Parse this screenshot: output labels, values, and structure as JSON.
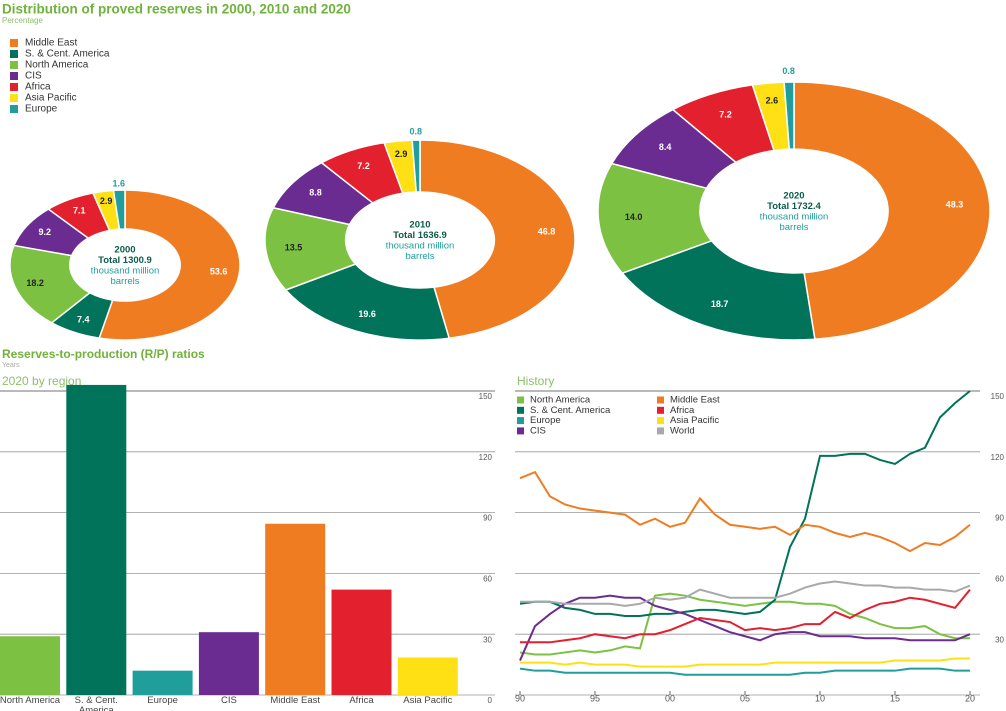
{
  "header": {
    "title": "Distribution of proved reserves in 2000, 2010 and 2020",
    "subtitle": "Percentage"
  },
  "section": {
    "title": "Reserves-to-production (R/P) ratios",
    "subtitle": "Years"
  },
  "chart_data": [
    {
      "type": "pie",
      "annotations": [
        "2000",
        "Total 1300.9",
        "thousand million",
        "barrels"
      ],
      "categories": [
        "Middle East",
        "S. & Cent. America",
        "North America",
        "CIS",
        "Africa",
        "Asia Pacific",
        "Europe"
      ],
      "colors": [
        "#f07c22",
        "#00735a",
        "#7dc143",
        "#6a2c91",
        "#e3202e",
        "#ffe014",
        "#1f9e9c"
      ],
      "values": [
        53.6,
        7.4,
        18.2,
        9.2,
        7.1,
        2.9,
        1.6
      ],
      "value_labels": [
        "53.6",
        "7.4",
        "18.2",
        "9.2",
        "7.1",
        "2.9",
        "1.6"
      ]
    },
    {
      "type": "pie",
      "annotations": [
        "2010",
        "Total 1636.9",
        "thousand million",
        "barrels"
      ],
      "categories": [
        "Middle East",
        "S. & Cent. America",
        "North America",
        "CIS",
        "Africa",
        "Asia Pacific",
        "Europe"
      ],
      "colors": [
        "#f07c22",
        "#00735a",
        "#7dc143",
        "#6a2c91",
        "#e3202e",
        "#ffe014",
        "#1f9e9c"
      ],
      "values": [
        46.8,
        19.6,
        13.5,
        8.8,
        7.2,
        2.9,
        0.8
      ],
      "value_labels": [
        "46.8",
        "19.6",
        "13.5",
        "8.8",
        "7.2",
        "2.9",
        "0.8"
      ]
    },
    {
      "type": "pie",
      "annotations": [
        "2020",
        "Total 1732.4",
        "thousand million",
        "barrels"
      ],
      "categories": [
        "Middle East",
        "S. & Cent. America",
        "North America",
        "CIS",
        "Africa",
        "Asia Pacific",
        "Europe"
      ],
      "colors": [
        "#f07c22",
        "#00735a",
        "#7dc143",
        "#6a2c91",
        "#e3202e",
        "#ffe014",
        "#1f9e9c"
      ],
      "values": [
        48.3,
        18.7,
        14.0,
        8.4,
        7.2,
        2.6,
        0.8
      ],
      "value_labels": [
        "48.3",
        "18.7",
        "14.0",
        "8.4",
        "7.2",
        "2.6",
        "0.8"
      ]
    },
    {
      "type": "bar",
      "title": "2020 by region",
      "categories": [
        "North America",
        "S. & Cent. America",
        "Europe",
        "CIS",
        "Middle East",
        "Africa",
        "Asia Pacific"
      ],
      "colors": [
        "#7dc143",
        "#00735a",
        "#1f9e9c",
        "#6a2c91",
        "#f07c22",
        "#e3202e",
        "#ffe014"
      ],
      "values": [
        29,
        153,
        12,
        31,
        84.5,
        52,
        18.5
      ],
      "ylim": [
        0,
        150
      ],
      "yticks": [
        0,
        30,
        60,
        90,
        120,
        150
      ],
      "grid": true
    },
    {
      "type": "line",
      "title": "History",
      "x": [
        1990,
        1991,
        1992,
        1993,
        1994,
        1995,
        1996,
        1997,
        1998,
        1999,
        2000,
        2001,
        2002,
        2003,
        2004,
        2005,
        2006,
        2007,
        2008,
        2009,
        2010,
        2011,
        2012,
        2013,
        2014,
        2015,
        2016,
        2017,
        2018,
        2019,
        2020
      ],
      "xlim": [
        1990,
        2020
      ],
      "xticks": [
        {
          "value": 1990,
          "label": "90"
        },
        {
          "value": 1995,
          "label": "95"
        },
        {
          "value": 2000,
          "label": "00"
        },
        {
          "value": 2005,
          "label": "05"
        },
        {
          "value": 2010,
          "label": "10"
        },
        {
          "value": 2015,
          "label": "15"
        },
        {
          "value": 2020,
          "label": "20"
        }
      ],
      "ylim": [
        0,
        150
      ],
      "yticks": [
        0,
        30,
        60,
        90,
        120,
        150
      ],
      "grid": true,
      "series": [
        {
          "name": "North America",
          "color": "#7dc143",
          "values": [
            21,
            20,
            20,
            21,
            22,
            21,
            22,
            24,
            23,
            49,
            50,
            49,
            47,
            46,
            45,
            44,
            45,
            46,
            46,
            45,
            45,
            44,
            40,
            38,
            35,
            33,
            33,
            34,
            30,
            28,
            28
          ]
        },
        {
          "name": "S. & Cent. America",
          "color": "#00735a",
          "values": [
            45,
            46,
            46,
            43,
            42,
            40,
            40,
            39,
            39,
            40,
            40,
            41,
            42,
            42,
            41,
            40,
            41,
            47,
            73,
            87,
            118,
            118,
            119,
            119,
            116,
            114,
            119,
            122,
            137,
            144,
            150
          ]
        },
        {
          "name": "Europe",
          "color": "#1f9e9c",
          "values": [
            13,
            12,
            12,
            11,
            11,
            11,
            11,
            11,
            11,
            11,
            11,
            10,
            10,
            10,
            10,
            10,
            10,
            10,
            10,
            11,
            11,
            12,
            12,
            12,
            12,
            12,
            13,
            13,
            13,
            12,
            12
          ]
        },
        {
          "name": "CIS",
          "color": "#6a2c91",
          "values": [
            17,
            34,
            40,
            45,
            48,
            48,
            49,
            48,
            48,
            44,
            42,
            40,
            37,
            34,
            31,
            29,
            27,
            30,
            31,
            31,
            29,
            29,
            29,
            28,
            28,
            28,
            27,
            27,
            27,
            27,
            30
          ]
        },
        {
          "name": "Middle East",
          "color": "#f07c22",
          "values": [
            107,
            110,
            98,
            94,
            92,
            91,
            90,
            89,
            84,
            87,
            83,
            85,
            97,
            89,
            84,
            83,
            82,
            83,
            79,
            84,
            83,
            80,
            78,
            80,
            78,
            75,
            71,
            75,
            74,
            78,
            84
          ]
        },
        {
          "name": "Africa",
          "color": "#e3202e",
          "values": [
            26,
            26,
            26,
            27,
            28,
            30,
            29,
            28,
            30,
            30,
            32,
            35,
            38,
            37,
            36,
            32,
            33,
            32,
            33,
            35,
            35,
            41,
            38,
            42,
            45,
            46,
            48,
            47,
            45,
            43,
            52
          ]
        },
        {
          "name": "Asia Pacific",
          "color": "#ffe014",
          "values": [
            16,
            16,
            16,
            15,
            16,
            15,
            15,
            15,
            14,
            14,
            14,
            14,
            15,
            15,
            15,
            15,
            15,
            16,
            16,
            16,
            16,
            16,
            16,
            16,
            16,
            17,
            17,
            17,
            17,
            18,
            18
          ]
        },
        {
          "name": "World",
          "color": "#a7a9ac",
          "values": [
            46,
            46,
            46,
            45,
            45,
            45,
            45,
            44,
            45,
            48,
            47,
            48,
            52,
            50,
            48,
            48,
            48,
            48,
            50,
            53,
            55,
            56,
            55,
            54,
            54,
            53,
            53,
            52,
            52,
            51,
            54
          ]
        }
      ]
    }
  ]
}
